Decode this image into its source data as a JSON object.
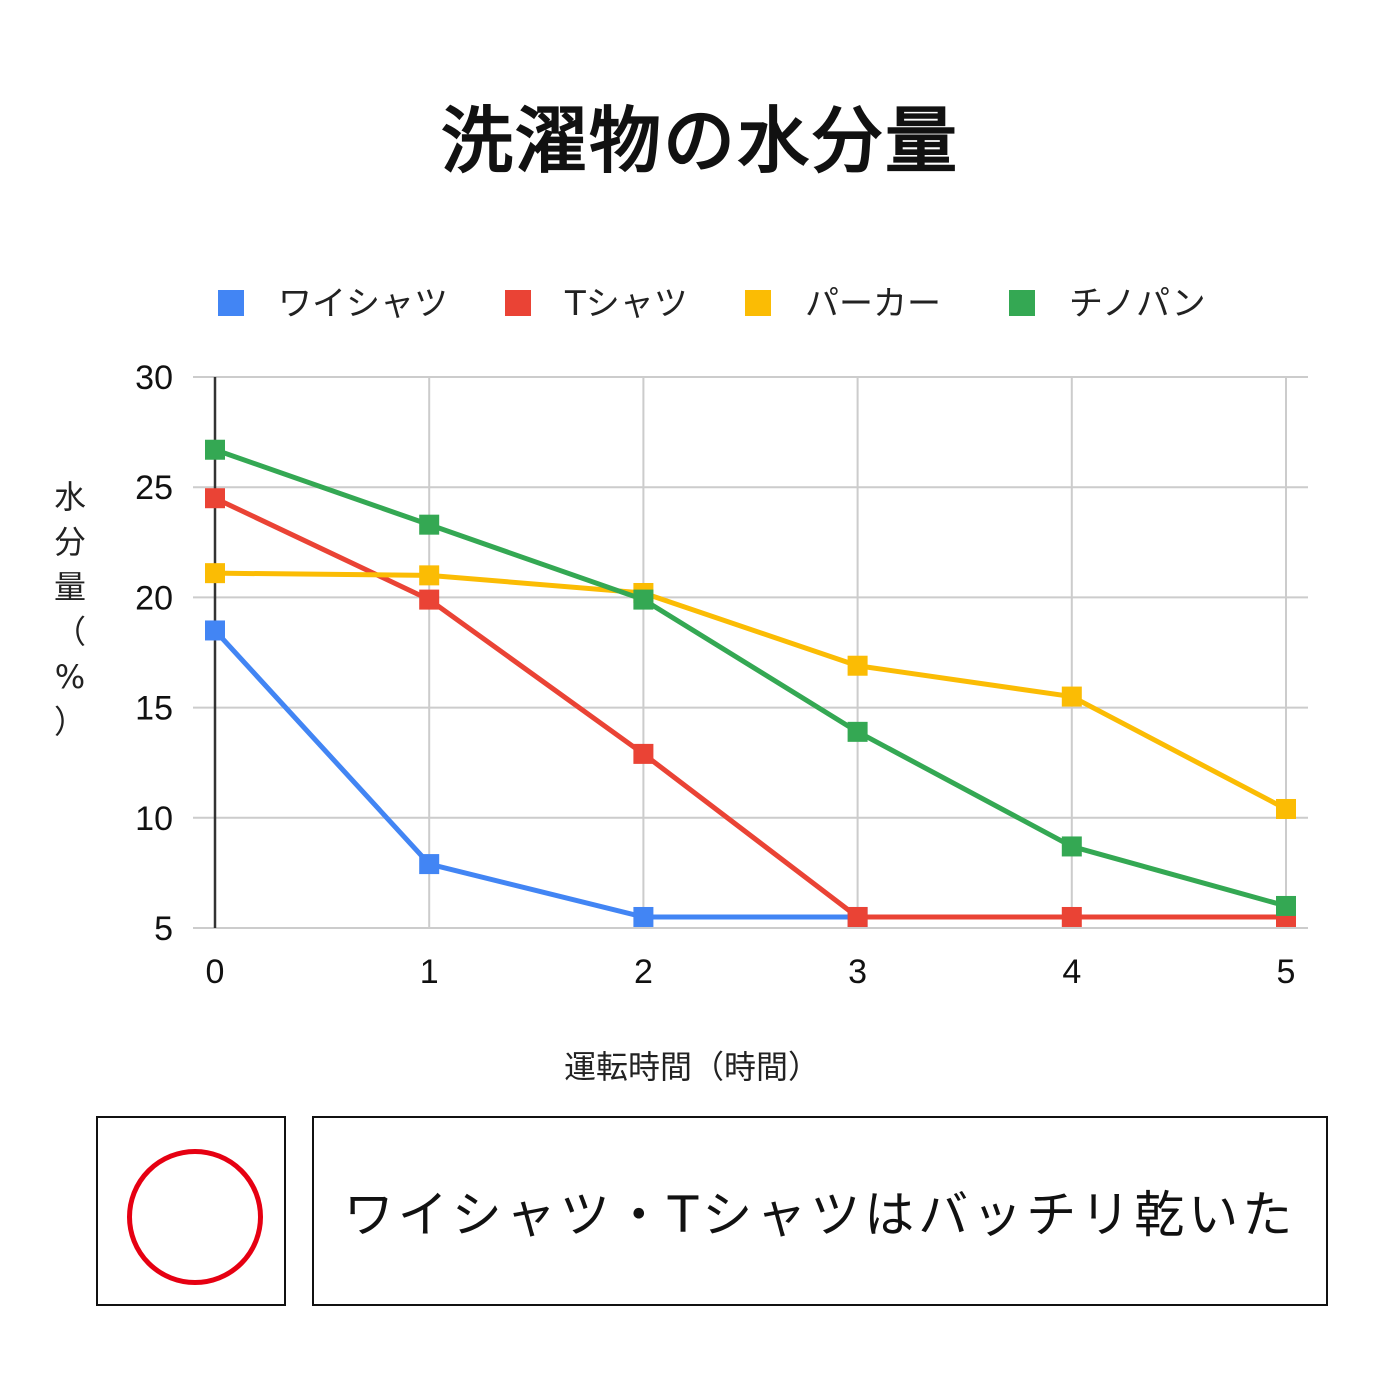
{
  "chart_data": {
    "type": "line",
    "title": "洗濯物の水分量",
    "xlabel": "運転時間（時間）",
    "ylabel": "水分量（%）",
    "x": [
      0,
      1,
      2,
      3,
      4,
      5
    ],
    "ylim": [
      5,
      30
    ],
    "yticks": [
      5,
      10,
      15,
      20,
      25,
      30
    ],
    "grid": true,
    "legend_position": "top",
    "series": [
      {
        "name": "ワイシャツ",
        "color": "#4285f4",
        "values": [
          18.5,
          7.9,
          5.5,
          5.5,
          null,
          null
        ]
      },
      {
        "name": "Tシャツ",
        "color": "#ea4335",
        "values": [
          24.5,
          19.9,
          12.9,
          5.5,
          5.5,
          5.5
        ]
      },
      {
        "name": "パーカー",
        "color": "#fbbc04",
        "values": [
          21.1,
          21.0,
          20.2,
          16.9,
          15.5,
          10.4
        ]
      },
      {
        "name": "チノパン",
        "color": "#34a853",
        "values": [
          26.7,
          23.3,
          19.9,
          13.9,
          8.7,
          6.0
        ]
      }
    ]
  },
  "evaluation": {
    "mark": "○",
    "mark_color": "#e60012",
    "comment": "ワイシャツ・Tシャツはバッチリ乾いた"
  }
}
